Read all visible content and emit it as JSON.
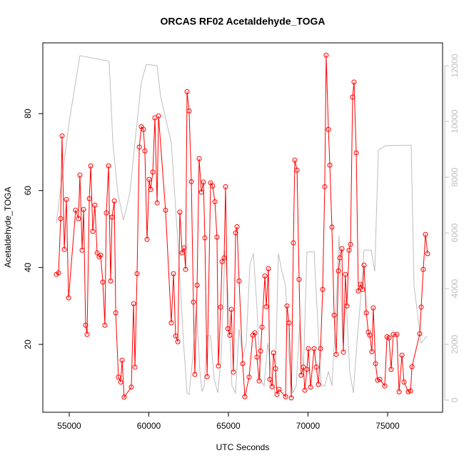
{
  "chart_data": {
    "type": "line",
    "title": "ORCAS RF02 Acetaldehyde_TOGA",
    "xlabel": "UTC Seconds",
    "ylabel": "Acetaldehyde_TOGA",
    "xlim": [
      53341,
      78453
    ],
    "ylim": [
      2.36,
      98.4
    ],
    "y2lim": [
      -436,
      12820
    ],
    "xticks": [
      55000,
      60000,
      65000,
      70000,
      75000
    ],
    "yticks": [
      20,
      40,
      60,
      80
    ],
    "y2ticks": [
      0,
      2000,
      4000,
      6000,
      8000,
      10000,
      12000
    ],
    "series": [
      {
        "color": "#ff0000",
        "marker": "circle",
        "x": [
          54190,
          54330,
          54460,
          54550,
          54690,
          54820,
          54960,
          55400,
          55580,
          55670,
          55810,
          55900,
          56030,
          56120,
          56260,
          56350,
          56480,
          56610,
          56750,
          56880,
          56970,
          57110,
          57240,
          57330,
          57470,
          57600,
          57690,
          57830,
          57920,
          58090,
          58230,
          58320,
          58450,
          58900,
          59040,
          59130,
          59260,
          59400,
          59530,
          59660,
          59750,
          59890,
          60020,
          60110,
          60250,
          60380,
          60520,
          60610,
          61050,
          61410,
          61550,
          61680,
          61820,
          61950,
          62090,
          62220,
          62310,
          62400,
          62530,
          62670,
          62800,
          62890,
          63030,
          63160,
          63300,
          63430,
          63520,
          63660,
          63880,
          64010,
          64150,
          64280,
          64370,
          64510,
          64600,
          64730,
          64820,
          64960,
          65090,
          65180,
          65310,
          65450,
          65540,
          65670,
          65900,
          66030,
          66300,
          66530,
          66660,
          66790,
          66930,
          67020,
          67110,
          67290,
          67380,
          67510,
          67600,
          67740,
          67830,
          67960,
          68050,
          68180,
          68590,
          68680,
          68810,
          68950,
          69080,
          69170,
          69310,
          69440,
          69570,
          69710,
          69800,
          69930,
          70020,
          70160,
          70380,
          70520,
          70650,
          70790,
          70920,
          71050,
          71140,
          71280,
          71370,
          71500,
          71640,
          71770,
          71910,
          72000,
          72130,
          72220,
          72350,
          72440,
          72580,
          72670,
          72800,
          72890,
          73030,
          73160,
          73300,
          73430,
          73520,
          73660,
          73790,
          73880,
          74010,
          74100,
          74240,
          74370,
          74510,
          74820,
          74960,
          75090,
          75220,
          75360,
          75580,
          75720,
          75900,
          76030,
          76300,
          76440,
          76530,
          77020,
          77110,
          77240,
          77380,
          77510
        ],
        "values": [
          38.2,
          38.6,
          52.7,
          74.2,
          44.7,
          57.7,
          32.1,
          54.9,
          52.7,
          64,
          44.5,
          55.1,
          25,
          22.6,
          57.9,
          66.4,
          49.4,
          56.2,
          43.8,
          42.8,
          43.2,
          36.2,
          25,
          54.2,
          66.4,
          36.5,
          53.1,
          57.3,
          28.2,
          11.5,
          10.2,
          15.9,
          6.3,
          8.9,
          30.6,
          14.1,
          38.4,
          71.3,
          76.6,
          75.9,
          70.3,
          47.3,
          62.9,
          60.3,
          64.8,
          78.9,
          56.8,
          79.4,
          54.9,
          25.6,
          38.4,
          22.2,
          20.7,
          54.4,
          43.8,
          45.1,
          39.5,
          85.7,
          80.7,
          62.3,
          31,
          12.2,
          35.4,
          68.3,
          59.6,
          62.2,
          47.7,
          11.6,
          62,
          61.2,
          57.1,
          47.9,
          14.4,
          29.7,
          41.5,
          42.5,
          61,
          24.1,
          22.4,
          29.1,
          12.8,
          49,
          50.6,
          36.5,
          15,
          6.4,
          11.5,
          22.4,
          23,
          16.7,
          10.5,
          18.3,
          24.5,
          37.8,
          29.8,
          39.7,
          10.9,
          9,
          17.8,
          13.7,
          7,
          8.3,
          6.4,
          30,
          25.6,
          6.1,
          46.4,
          67.9,
          65.3,
          36.9,
          12,
          14.1,
          8.1,
          13.5,
          18.9,
          8.9,
          18.9,
          14.1,
          9.6,
          18.9,
          34.3,
          61,
          95.2,
          75.9,
          66.6,
          50.5,
          27.6,
          17.4,
          39.1,
          42.5,
          44.9,
          18,
          38.2,
          30,
          44.5,
          46,
          84.3,
          88.2,
          69.8,
          33.9,
          35.6,
          34.3,
          40.6,
          28.2,
          23.2,
          22.4,
          18.1,
          29.5,
          15,
          10.7,
          10.9,
          9.2,
          22,
          21.7,
          13.5,
          22.6,
          22.6,
          7.7,
          17.2,
          10.2,
          7.7,
          7.9,
          14.2,
          22.8,
          29.7,
          39.5,
          48.6,
          43.6
        ]
      },
      {
        "color": "#bebebe",
        "axis": "y2",
        "x": [
          54190,
          55000,
          55670,
          57380,
          57510,
          57740,
          58050,
          58410,
          58810,
          59170,
          59530,
          59840,
          60520,
          60740,
          61410,
          61860,
          62180,
          62400,
          62530,
          62760,
          62980,
          63210,
          63340,
          63480,
          63660,
          63880,
          64100,
          64330,
          64550,
          64780,
          65000,
          65220,
          65450,
          65670,
          65900,
          66120,
          66350,
          66570,
          66790,
          67020,
          67240,
          67470,
          67690,
          67920,
          68140,
          68360,
          68590,
          68810,
          69040,
          69260,
          69480,
          69710,
          69930,
          70380,
          70610,
          70830,
          71050,
          71280,
          71500,
          71730,
          71950,
          72180,
          72400,
          72620,
          72850,
          73070,
          73300,
          73520,
          73970,
          74190,
          74420,
          74870,
          76480,
          76660,
          77110,
          77470
        ],
        "values": [
          6360,
          10000,
          12360,
          12180,
          12130,
          9230,
          7440,
          6460,
          7440,
          9490,
          11410,
          12050,
          12000,
          10900,
          9230,
          5380,
          2050,
          260,
          210,
          1540,
          3330,
          1030,
          310,
          510,
          2310,
          2310,
          770,
          260,
          1540,
          5380,
          3590,
          510,
          260,
          2560,
          1540,
          2050,
          4870,
          5260,
          3330,
          770,
          510,
          2050,
          1030,
          260,
          5260,
          4620,
          4100,
          1540,
          260,
          510,
          2820,
          1030,
          5310,
          5330,
          2820,
          510,
          510,
          1030,
          510,
          2820,
          5900,
          2050,
          3590,
          1030,
          260,
          2050,
          3590,
          5380,
          5380,
          4620,
          8970,
          9130,
          9150,
          4100,
          2050,
          2310
        ]
      }
    ]
  }
}
